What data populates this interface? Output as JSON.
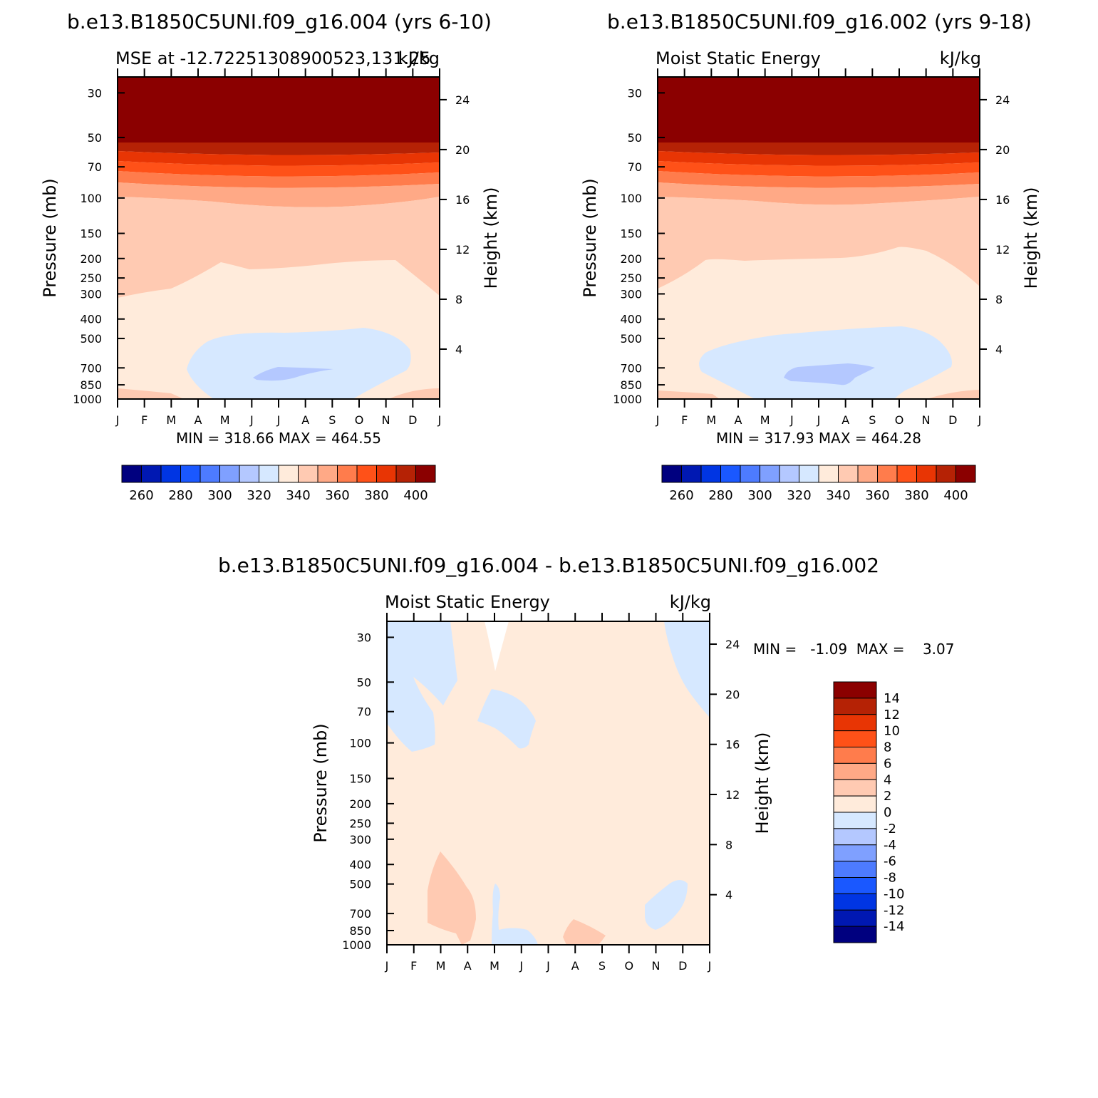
{
  "colors": {
    "scale": [
      "#00007f",
      "#0018b2",
      "#0035e3",
      "#1a58ff",
      "#4d7bff",
      "#7fa0ff",
      "#b4c8ff",
      "#d6e8ff",
      "#ffebdb",
      "#ffcab2",
      "#ffa986",
      "#ff7c4c",
      "#ff5118",
      "#e83504",
      "#b52205",
      "#8b0000"
    ]
  },
  "months": [
    "J",
    "F",
    "M",
    "A",
    "M",
    "J",
    "J",
    "A",
    "S",
    "O",
    "N",
    "D",
    "J"
  ],
  "pressure_ticks": [
    "30",
    "50",
    "70",
    "100",
    "150",
    "200",
    "250",
    "300",
    "400",
    "500",
    "700",
    "850",
    "1000"
  ],
  "height_ticks": [
    "24",
    "20",
    "16",
    "12",
    "8",
    "4"
  ],
  "panels": [
    {
      "title": "b.e13.B1850C5UNI.f09_g16.004 (yrs 6-10)",
      "subtitle_left": "MSE at -12.72251308900523,131.25",
      "subtitle_right": "kJ/kg",
      "ylabel": "Pressure (mb)",
      "ylabel2": "Height (km)",
      "minmax": "MIN = 318.66 MAX = 464.55",
      "colorbar_labels": [
        "260",
        "280",
        "300",
        "320",
        "340",
        "360",
        "380",
        "400"
      ]
    },
    {
      "title": "b.e13.B1850C5UNI.f09_g16.002 (yrs 9-18)",
      "subtitle_left": "Moist Static Energy",
      "subtitle_right": "kJ/kg",
      "ylabel": "Pressure (mb)",
      "ylabel2": "Height (km)",
      "minmax": "MIN = 317.93 MAX = 464.28",
      "colorbar_labels": [
        "260",
        "280",
        "300",
        "320",
        "340",
        "360",
        "380",
        "400"
      ]
    },
    {
      "title": "b.e13.B1850C5UNI.f09_g16.004 - b.e13.B1850C5UNI.f09_g16.002",
      "subtitle_left": "Moist Static Energy",
      "subtitle_right": "kJ/kg",
      "ylabel": "Pressure (mb)",
      "ylabel2": "Height (km)",
      "minmax": "MIN =   -1.09  MAX =    3.07",
      "colorbar_labels": [
        "14",
        "12",
        "10",
        "8",
        "6",
        "4",
        "2",
        "0",
        "-2",
        "-4",
        "-6",
        "-8",
        "-10",
        "-12",
        "-14"
      ]
    }
  ],
  "chart_data": [
    {
      "type": "heatmap",
      "title": "b.e13.B1850C5UNI.f09_g16.004 (yrs 6-10)",
      "x": [
        "J",
        "F",
        "M",
        "A",
        "M",
        "J",
        "J",
        "A",
        "S",
        "O",
        "N",
        "D",
        "J"
      ],
      "y_pressure_mb": [
        30,
        50,
        70,
        100,
        150,
        200,
        250,
        300,
        400,
        500,
        700,
        850,
        1000
      ],
      "y2_height_km": [
        24,
        20,
        16,
        12,
        8,
        4
      ],
      "contour_levels": [
        260,
        270,
        280,
        290,
        300,
        310,
        320,
        330,
        340,
        350,
        360,
        370,
        380,
        390,
        400
      ],
      "min": 318.66,
      "max": 464.55,
      "units": "kJ/kg"
    },
    {
      "type": "heatmap",
      "title": "b.e13.B1850C5UNI.f09_g16.002 (yrs 9-18)",
      "x": [
        "J",
        "F",
        "M",
        "A",
        "M",
        "J",
        "J",
        "A",
        "S",
        "O",
        "N",
        "D",
        "J"
      ],
      "y_pressure_mb": [
        30,
        50,
        70,
        100,
        150,
        200,
        250,
        300,
        400,
        500,
        700,
        850,
        1000
      ],
      "y2_height_km": [
        24,
        20,
        16,
        12,
        8,
        4
      ],
      "contour_levels": [
        260,
        270,
        280,
        290,
        300,
        310,
        320,
        330,
        340,
        350,
        360,
        370,
        380,
        390,
        400
      ],
      "min": 317.93,
      "max": 464.28,
      "units": "kJ/kg"
    },
    {
      "type": "heatmap",
      "title": "b.e13.B1850C5UNI.f09_g16.004 - b.e13.B1850C5UNI.f09_g16.002",
      "x": [
        "J",
        "F",
        "M",
        "A",
        "M",
        "J",
        "J",
        "A",
        "S",
        "O",
        "N",
        "D",
        "J"
      ],
      "y_pressure_mb": [
        30,
        50,
        70,
        100,
        150,
        200,
        250,
        300,
        400,
        500,
        700,
        850,
        1000
      ],
      "y2_height_km": [
        24,
        20,
        16,
        12,
        8,
        4
      ],
      "contour_levels": [
        -14,
        -12,
        -10,
        -8,
        -6,
        -4,
        -2,
        0,
        2,
        4,
        6,
        8,
        10,
        12,
        14
      ],
      "min": -1.09,
      "max": 3.07,
      "units": "kJ/kg"
    }
  ]
}
